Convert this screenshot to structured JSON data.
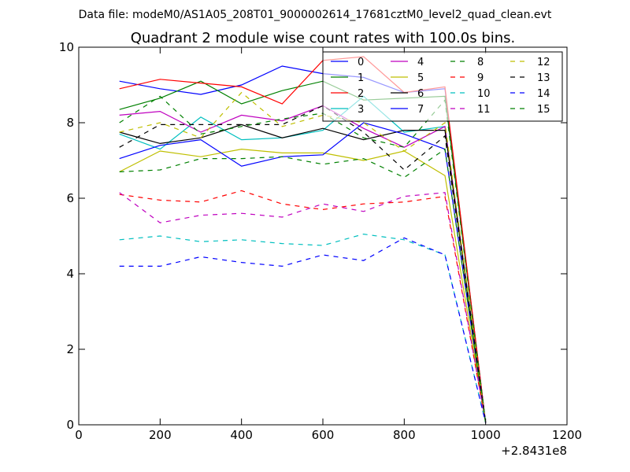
{
  "figure": {
    "suptitle": "Data file: modeM0/AS1A05_208T01_9000002614_17681cztM0_level2_quad_clean.evt"
  },
  "chart_data": {
    "type": "line",
    "title": "Quadrant 2 module wise count rates with 100.0s bins.",
    "xlabel": "",
    "ylabel": "",
    "x_offset_label": "+2.8431e8",
    "xlim": [
      0,
      1200
    ],
    "ylim": [
      0,
      10
    ],
    "xticks": [
      0,
      200,
      400,
      600,
      800,
      1000,
      1200
    ],
    "yticks": [
      0,
      2,
      4,
      6,
      8,
      10
    ],
    "grid": false,
    "legend_placement": "top-right",
    "legend_columns": 4,
    "x": [
      100,
      200,
      300,
      400,
      500,
      600,
      700,
      800,
      900,
      1000
    ],
    "series": [
      {
        "name": "0",
        "color": "#0000ff",
        "dash": "solid",
        "values": [
          9.1,
          8.9,
          8.75,
          9.0,
          9.5,
          9.3,
          9.2,
          8.8,
          8.9,
          0.05
        ]
      },
      {
        "name": "1",
        "color": "#008000",
        "dash": "solid",
        "values": [
          8.35,
          8.65,
          9.1,
          8.5,
          8.85,
          9.1,
          8.6,
          8.65,
          8.7,
          0.05
        ]
      },
      {
        "name": "2",
        "color": "#ff0000",
        "dash": "solid",
        "values": [
          8.9,
          9.15,
          9.05,
          8.95,
          8.5,
          9.65,
          9.75,
          8.8,
          8.95,
          0.05
        ]
      },
      {
        "name": "3",
        "color": "#00bfbf",
        "dash": "solid",
        "values": [
          7.7,
          7.3,
          8.15,
          7.55,
          7.6,
          7.8,
          8.7,
          7.75,
          7.9,
          0.05
        ]
      },
      {
        "name": "4",
        "color": "#bf00bf",
        "dash": "solid",
        "values": [
          8.2,
          8.3,
          7.75,
          8.2,
          8.05,
          8.45,
          7.85,
          7.35,
          7.9,
          0.05
        ]
      },
      {
        "name": "5",
        "color": "#bfbf00",
        "dash": "solid",
        "values": [
          6.7,
          7.25,
          7.1,
          7.3,
          7.2,
          7.2,
          7.0,
          7.25,
          6.6,
          0.05
        ]
      },
      {
        "name": "6",
        "color": "#000000",
        "dash": "solid",
        "values": [
          7.75,
          7.45,
          7.6,
          7.95,
          7.6,
          7.85,
          7.55,
          7.8,
          7.8,
          0.05
        ]
      },
      {
        "name": "7",
        "color": "#0000ff",
        "dash": "solid",
        "values": [
          7.05,
          7.4,
          7.55,
          6.85,
          7.1,
          7.15,
          8.0,
          7.7,
          7.3,
          0.05
        ]
      },
      {
        "name": "8",
        "color": "#008000",
        "dash": "dashed",
        "values": [
          6.7,
          6.75,
          7.05,
          7.05,
          7.1,
          6.9,
          7.05,
          6.55,
          7.3,
          0.05
        ]
      },
      {
        "name": "9",
        "color": "#ff0000",
        "dash": "dashed",
        "values": [
          6.1,
          5.95,
          5.9,
          6.2,
          5.85,
          5.7,
          5.85,
          5.9,
          6.05,
          0.05
        ]
      },
      {
        "name": "10",
        "color": "#00bfbf",
        "dash": "dashed",
        "values": [
          4.9,
          5.0,
          4.85,
          4.9,
          4.8,
          4.75,
          5.05,
          4.9,
          4.5,
          0.05
        ]
      },
      {
        "name": "11",
        "color": "#bf00bf",
        "dash": "dashed",
        "values": [
          6.15,
          5.35,
          5.55,
          5.6,
          5.5,
          5.85,
          5.65,
          6.05,
          6.15,
          0.05
        ]
      },
      {
        "name": "12",
        "color": "#bfbf00",
        "dash": "dashed",
        "values": [
          7.75,
          8.0,
          7.6,
          8.8,
          7.9,
          8.2,
          8.0,
          7.25,
          8.0,
          0.05
        ]
      },
      {
        "name": "13",
        "color": "#000000",
        "dash": "dashed",
        "values": [
          7.35,
          7.95,
          7.95,
          7.95,
          7.95,
          8.45,
          7.75,
          6.75,
          7.65,
          0.05
        ]
      },
      {
        "name": "14",
        "color": "#0000ff",
        "dash": "dashed",
        "values": [
          4.2,
          4.2,
          4.45,
          4.3,
          4.2,
          4.5,
          4.35,
          4.95,
          4.5,
          0.05
        ]
      },
      {
        "name": "15",
        "color": "#008000",
        "dash": "dashed",
        "values": [
          8.0,
          8.7,
          7.7,
          7.9,
          8.1,
          8.25,
          7.6,
          7.35,
          8.6,
          0.05
        ]
      }
    ]
  }
}
